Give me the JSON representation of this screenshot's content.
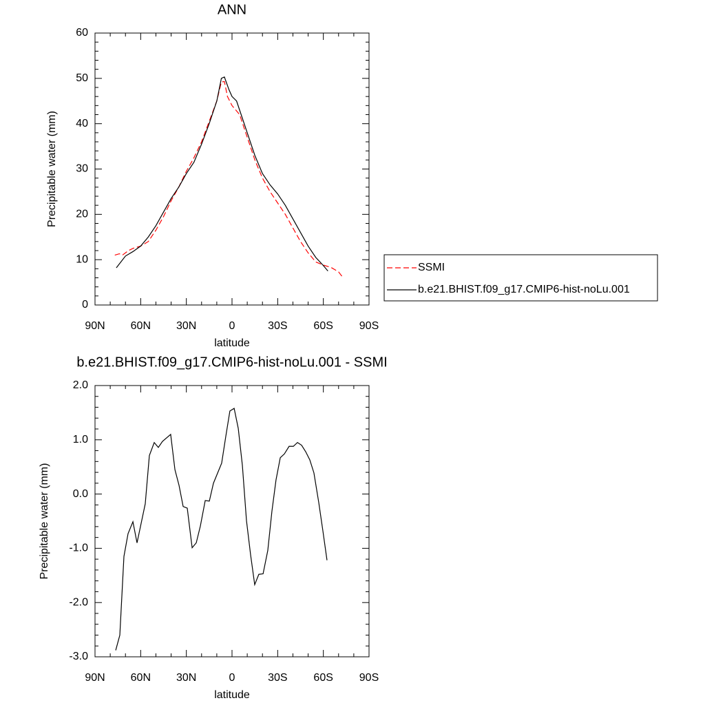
{
  "chart_data": [
    {
      "type": "line",
      "title": "ANN",
      "xlabel": "latitude",
      "ylabel": "Precipitable water (mm)",
      "xlim": [
        90,
        -90
      ],
      "xticks": [
        {
          "value": 90,
          "label": "90N"
        },
        {
          "value": 60,
          "label": "60N"
        },
        {
          "value": 30,
          "label": "30N"
        },
        0,
        {
          "value": -30,
          "label": "30S"
        },
        {
          "value": -60,
          "label": "60S"
        },
        {
          "value": -90,
          "label": "90S"
        }
      ],
      "ylim": [
        0,
        60
      ],
      "yticks": [
        0,
        10,
        20,
        30,
        40,
        50,
        60
      ],
      "legend": "right",
      "series": [
        {
          "name": "SSMI",
          "color": "#ff0000",
          "dash": true,
          "x": [
            77,
            74,
            72,
            68,
            65,
            60,
            55,
            50,
            45,
            40,
            35,
            30,
            25,
            20,
            15,
            10,
            7,
            5,
            3,
            0,
            -5,
            -10,
            -15,
            -20,
            -25,
            -30,
            -35,
            -40,
            -45,
            -50,
            -55,
            -60,
            -65,
            -70,
            -73
          ],
          "values": [
            11,
            11.3,
            11,
            12,
            12.5,
            13,
            14,
            16.5,
            19.5,
            23,
            26,
            29.5,
            32.5,
            36,
            40.5,
            45,
            49.2,
            49.3,
            46,
            44,
            42,
            37,
            32,
            28,
            25,
            22.5,
            20,
            17,
            14,
            11.5,
            9.5,
            8.8,
            8.3,
            7.3,
            6
          ]
        },
        {
          "name": "b.e21.BHIST.f09_g17.CMIP6-hist-noLu.001",
          "color": "#000000",
          "dash": false,
          "x": [
            76,
            70,
            65,
            60,
            55,
            50,
            45,
            40,
            35,
            30,
            25,
            20,
            15,
            10,
            7,
            5,
            2,
            0,
            -3,
            -6,
            -10,
            -15,
            -20,
            -25,
            -30,
            -35,
            -40,
            -45,
            -50,
            -55,
            -60,
            -63
          ],
          "values": [
            8.2,
            10.8,
            11.8,
            13,
            15,
            17.5,
            20.5,
            23.5,
            26,
            29,
            31.5,
            35.5,
            40,
            45,
            50,
            50.3,
            47.5,
            46,
            45,
            42,
            38,
            33,
            29,
            26.5,
            24.5,
            22,
            19,
            16,
            13,
            10.5,
            8.7,
            7.5
          ]
        }
      ]
    },
    {
      "type": "line",
      "title": "b.e21.BHIST.f09_g17.CMIP6-hist-noLu.001 - SSMI",
      "xlabel": "latitude",
      "ylabel": "Precipitable water (mm)",
      "xlim": [
        90,
        -90
      ],
      "xticks": [
        {
          "value": 90,
          "label": "90N"
        },
        {
          "value": 60,
          "label": "60N"
        },
        {
          "value": 30,
          "label": "30N"
        },
        0,
        {
          "value": -30,
          "label": "30S"
        },
        {
          "value": -60,
          "label": "60S"
        },
        {
          "value": -90,
          "label": "90S"
        }
      ],
      "ylim": [
        -3,
        2
      ],
      "yticks": [
        {
          "value": -3,
          "label": "-3.0"
        },
        {
          "value": -2,
          "label": "-2.0"
        },
        {
          "value": -1,
          "label": "-1.0"
        },
        {
          "value": 0,
          "label": "0.0"
        },
        {
          "value": 1,
          "label": "1.0"
        },
        {
          "value": 2,
          "label": "2.0"
        }
      ],
      "series": [
        {
          "color": "#000000",
          "dash": false,
          "x": [
            76.4,
            73.7,
            71,
            68.3,
            65.1,
            62.4,
            57,
            54.3,
            51.1,
            48.4,
            45.7,
            40.3,
            37.5,
            34.8,
            32.1,
            29.4,
            26.2,
            23.5,
            20.8,
            17.6,
            14.9,
            12.2,
            6.8,
            4.1,
            1.4,
            -1.4,
            -4.1,
            -6.8,
            -9.5,
            -12.2,
            -14.9,
            -17.6,
            -20.4,
            -23.5,
            -26.2,
            -28.9,
            -31.7,
            -34.4,
            -37.5,
            -40.3,
            -43,
            -45.7,
            -48.4,
            -51.1,
            -53.8,
            -57,
            -59.7,
            -62.4
          ],
          "values": [
            -2.88,
            -2.6,
            -1.15,
            -0.73,
            -0.51,
            -0.9,
            -0.18,
            0.71,
            0.95,
            0.86,
            0.97,
            1.1,
            0.45,
            0.16,
            -0.23,
            -0.26,
            -0.99,
            -0.9,
            -0.59,
            -0.12,
            -0.13,
            0.2,
            0.57,
            1.06,
            1.53,
            1.58,
            1.21,
            0.53,
            -0.49,
            -1.12,
            -1.67,
            -1.48,
            -1.47,
            -1.04,
            -0.32,
            0.26,
            0.67,
            0.74,
            0.88,
            0.88,
            0.95,
            0.9,
            0.78,
            0.63,
            0.39,
            -0.16,
            -0.68,
            -1.22
          ]
        }
      ]
    }
  ]
}
